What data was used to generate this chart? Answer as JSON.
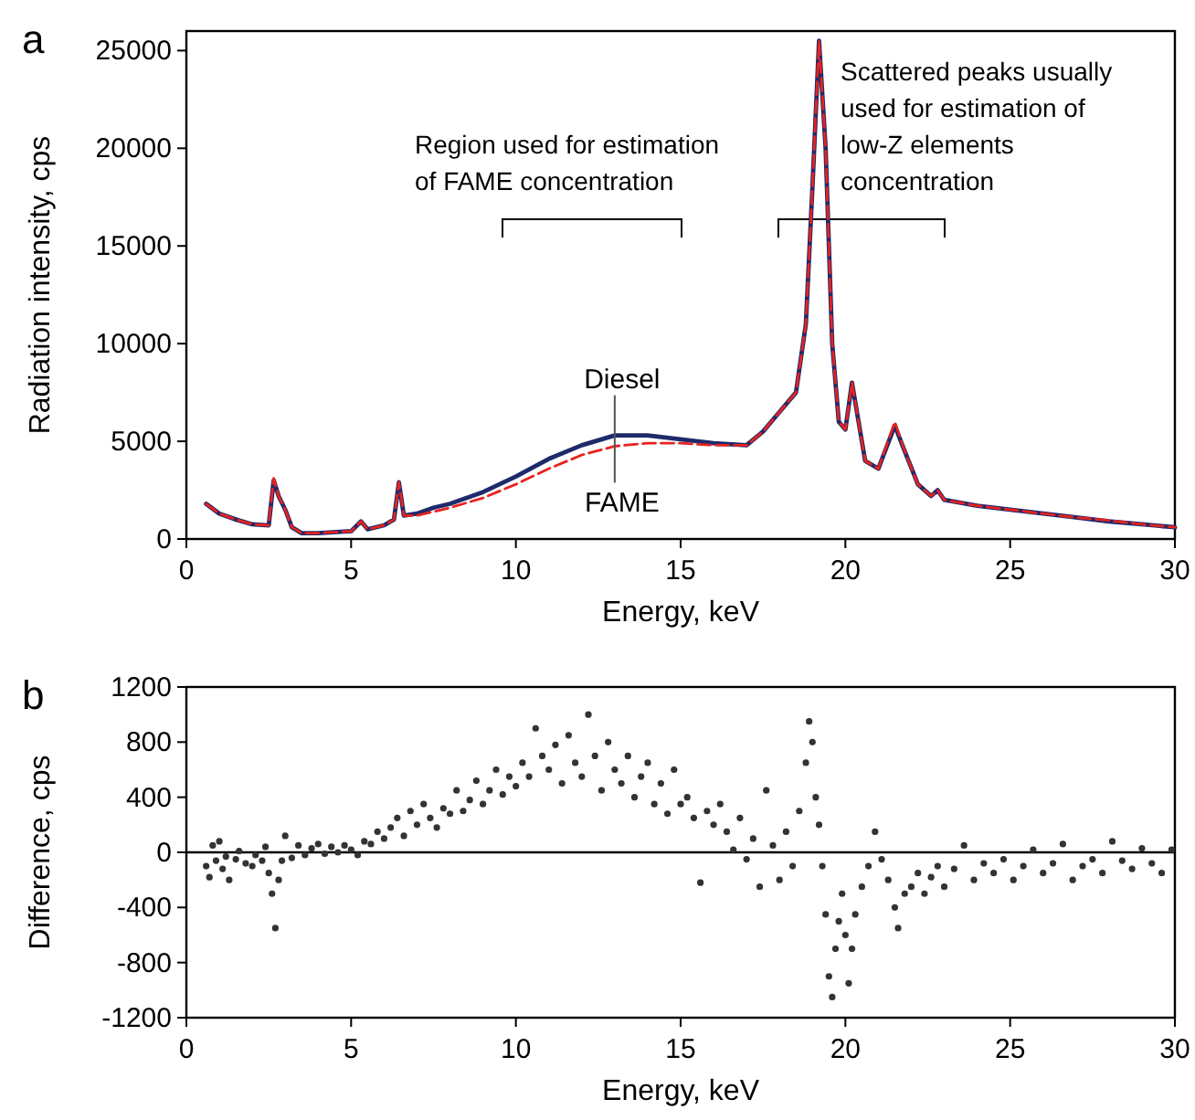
{
  "chart_data": [
    {
      "type": "line",
      "annotations": [
        "a",
        "Region used for estimation of FAME concentration",
        "Scattered peaks usually used for estimation of low-Z elements concentration"
      ],
      "xlabel": "Energy, keV",
      "ylabel": "Radiation intensity, cps",
      "xlim": [
        0,
        30
      ],
      "xticks": [
        0,
        5,
        10,
        15,
        20,
        25,
        30
      ],
      "ylim": [
        0,
        26000
      ],
      "yticks": [
        0,
        5000,
        10000,
        15000,
        20000,
        25000
      ],
      "x": [
        0.6,
        1.0,
        1.5,
        2.0,
        2.5,
        2.65,
        2.8,
        3.0,
        3.2,
        3.5,
        4.0,
        5.0,
        5.3,
        5.5,
        6.0,
        6.3,
        6.45,
        6.6,
        7.0,
        7.5,
        8,
        9,
        10,
        11,
        12,
        13,
        14,
        15,
        16,
        17,
        17.5,
        18,
        18.5,
        18.8,
        19.0,
        19.2,
        19.4,
        19.6,
        19.8,
        20.0,
        20.2,
        20.4,
        20.6,
        21.0,
        21.5,
        21.8,
        22.2,
        22.6,
        22.8,
        23,
        24,
        25,
        26,
        27,
        28,
        29,
        30
      ],
      "series": [
        {
          "name": "Diesel",
          "color": "#1f2a6b",
          "values": [
            1800,
            1300,
            1000,
            750,
            700,
            3000,
            2200,
            1500,
            600,
            300,
            300,
            400,
            900,
            500,
            700,
            1000,
            2900,
            1200,
            1300,
            1600,
            1800,
            2400,
            3200,
            4100,
            4800,
            5300,
            5300,
            5100,
            4900,
            4800,
            5500,
            6500,
            7500,
            11000,
            18000,
            25500,
            20000,
            10000,
            6000,
            5600,
            8000,
            6000,
            4000,
            3600,
            5800,
            4500,
            2800,
            2200,
            2500,
            2000,
            1700,
            1500,
            1300,
            1100,
            900,
            750,
            600
          ]
        },
        {
          "name": "FAME",
          "color": "#e8221e",
          "line_style": "dashed",
          "values": [
            1800,
            1300,
            1000,
            750,
            700,
            3100,
            2200,
            1500,
            600,
            300,
            300,
            400,
            900,
            500,
            700,
            1000,
            2900,
            1200,
            1200,
            1400,
            1600,
            2100,
            2800,
            3600,
            4300,
            4750,
            4900,
            4900,
            4800,
            4800,
            5500,
            6500,
            7500,
            11000,
            18000,
            25500,
            20000,
            10000,
            6000,
            5600,
            8000,
            6000,
            4000,
            3600,
            6000,
            4500,
            2800,
            2200,
            2500,
            2000,
            1700,
            1500,
            1300,
            1100,
            950,
            750,
            600
          ]
        }
      ],
      "legend": false
    },
    {
      "type": "scatter",
      "annotations": [
        "b"
      ],
      "xlabel": "Energy, keV",
      "ylabel": "Difference, cps",
      "xlim": [
        0,
        30
      ],
      "xticks": [
        0,
        5,
        10,
        15,
        20,
        25,
        30
      ],
      "ylim": [
        -1200,
        1200
      ],
      "yticks": [
        -1200,
        -800,
        -400,
        0,
        400,
        800,
        1200
      ],
      "marker": "circle",
      "ref_lines": [
        {
          "axis": "y",
          "value": 0
        }
      ],
      "x": [
        0.6,
        0.7,
        0.8,
        0.9,
        1.0,
        1.1,
        1.2,
        1.3,
        1.5,
        1.6,
        1.8,
        2.0,
        2.1,
        2.3,
        2.4,
        2.5,
        2.6,
        2.7,
        2.8,
        2.9,
        3.0,
        3.2,
        3.4,
        3.6,
        3.8,
        4.0,
        4.2,
        4.4,
        4.6,
        4.8,
        5.0,
        5.2,
        5.4,
        5.6,
        5.8,
        6.0,
        6.2,
        6.4,
        6.6,
        6.8,
        7.0,
        7.2,
        7.4,
        7.6,
        7.8,
        8.0,
        8.2,
        8.4,
        8.6,
        8.8,
        9.0,
        9.2,
        9.4,
        9.6,
        9.8,
        10.0,
        10.2,
        10.4,
        10.6,
        10.8,
        11.0,
        11.2,
        11.4,
        11.6,
        11.8,
        12.0,
        12.2,
        12.4,
        12.6,
        12.8,
        13.0,
        13.2,
        13.4,
        13.6,
        13.8,
        14.0,
        14.2,
        14.4,
        14.6,
        14.8,
        15.0,
        15.2,
        15.4,
        15.6,
        15.8,
        16.0,
        16.2,
        16.4,
        16.6,
        16.8,
        17.0,
        17.2,
        17.4,
        17.6,
        17.8,
        18.0,
        18.2,
        18.4,
        18.6,
        18.8,
        18.9,
        19.0,
        19.1,
        19.2,
        19.3,
        19.4,
        19.5,
        19.6,
        19.7,
        19.8,
        19.9,
        20.0,
        20.1,
        20.2,
        20.3,
        20.5,
        20.7,
        20.9,
        21.1,
        21.3,
        21.5,
        21.6,
        21.8,
        22.0,
        22.2,
        22.4,
        22.6,
        22.8,
        23.0,
        23.3,
        23.6,
        23.9,
        24.2,
        24.5,
        24.8,
        25.1,
        25.4,
        25.7,
        26.0,
        26.3,
        26.6,
        26.9,
        27.2,
        27.5,
        27.8,
        28.1,
        28.4,
        28.7,
        29.0,
        29.3,
        29.6,
        29.9
      ],
      "series": [
        {
          "color": "#333333",
          "values": [
            -100,
            -180,
            50,
            -60,
            80,
            -120,
            -30,
            -200,
            -50,
            10,
            -80,
            -100,
            -20,
            -60,
            40,
            -150,
            -300,
            -550,
            -200,
            -60,
            120,
            -40,
            50,
            -20,
            30,
            60,
            -10,
            40,
            0,
            50,
            20,
            -20,
            80,
            60,
            150,
            100,
            180,
            250,
            120,
            300,
            200,
            350,
            250,
            180,
            320,
            280,
            450,
            300,
            380,
            520,
            350,
            450,
            600,
            420,
            550,
            480,
            650,
            550,
            900,
            700,
            600,
            780,
            500,
            850,
            650,
            550,
            1000,
            700,
            450,
            800,
            600,
            500,
            700,
            400,
            550,
            650,
            350,
            500,
            280,
            600,
            350,
            400,
            250,
            -220,
            300,
            200,
            350,
            150,
            20,
            250,
            -50,
            100,
            -250,
            450,
            50,
            -200,
            150,
            -100,
            300,
            650,
            950,
            800,
            400,
            200,
            -100,
            -450,
            -900,
            -1050,
            -700,
            -500,
            -300,
            -600,
            -950,
            -700,
            -450,
            -250,
            -100,
            150,
            -50,
            -200,
            -400,
            -550,
            -300,
            -250,
            -150,
            -300,
            -180,
            -100,
            -250,
            -120,
            50,
            -200,
            -80,
            -150,
            -50,
            -200,
            -100,
            20,
            -150,
            -80,
            60,
            -200,
            -100,
            -50,
            -150,
            80,
            -60,
            -120,
            30,
            -80,
            -150,
            20
          ]
        }
      ]
    }
  ]
}
